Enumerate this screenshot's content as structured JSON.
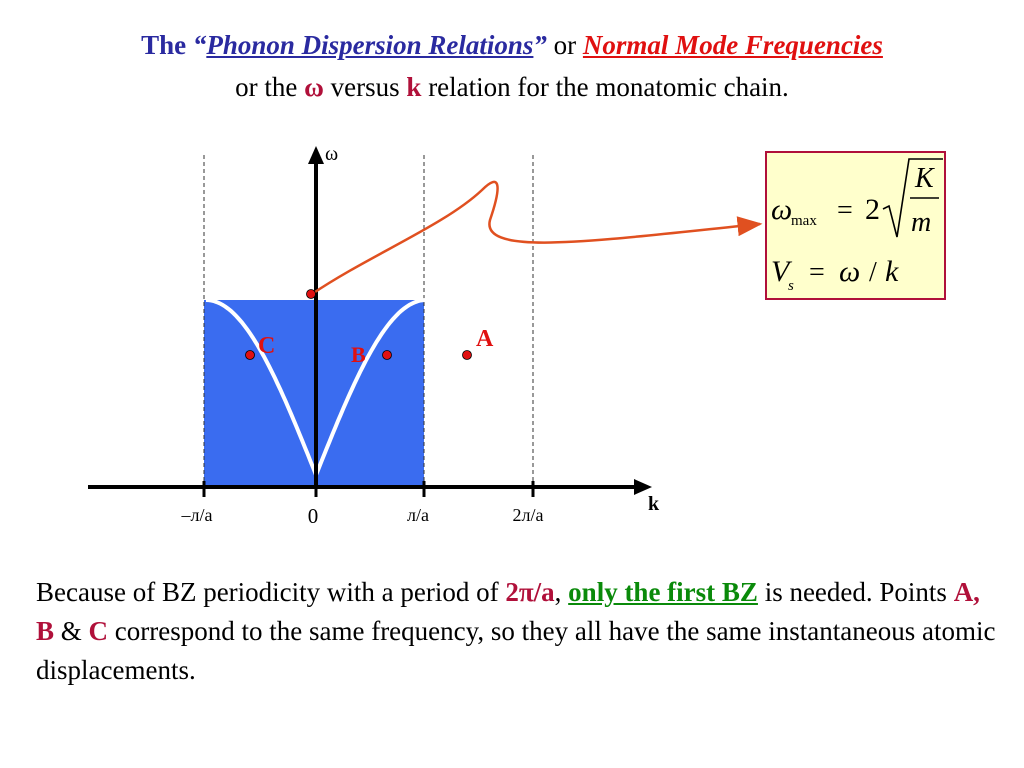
{
  "title": {
    "line1": {
      "the": "The ",
      "quote_open": "“",
      "phonon": "Phonon Dispersion Relations",
      "quote_close": "”",
      "or": " or ",
      "normal_mode": "Normal Mode Frequencies"
    },
    "line2": {
      "or_the": "or the ",
      "omega": "ω",
      "versus": " versus ",
      "k": "k",
      "rest": " relation for the monatomic chain."
    }
  },
  "diagram": {
    "y_axis_label": "ω",
    "x_axis_label": "k",
    "ticks": {
      "neg_pi": "–л/a",
      "zero": "0",
      "pi": "л/a",
      "two_pi": "2л/a"
    },
    "points": {
      "A": "A",
      "B": "B",
      "C": "C"
    },
    "colors": {
      "zone_fill": "#3a6cf0",
      "curve": "#ffffff",
      "arrow": "#e05020",
      "point": "#e01010",
      "label": "#e01010"
    }
  },
  "formula": {
    "omega": "ω",
    "max": "max",
    "equals1": "=",
    "two": "2",
    "K": "K",
    "m": "m",
    "V": "V",
    "s": "s",
    "equals2": "=",
    "omega2": "ω",
    "slash": "/",
    "k": "k"
  },
  "paragraph": {
    "p1": "Because of BZ periodicity with a period of ",
    "period": "2π/a",
    "comma": ", ",
    "first_bz": "only the first BZ",
    "p2": " is needed. Points ",
    "ab": "A, B",
    "amp": " & ",
    "c": "C",
    "p3": " correspond to the same frequency, so they all have the same instantaneous atomic displacements."
  }
}
